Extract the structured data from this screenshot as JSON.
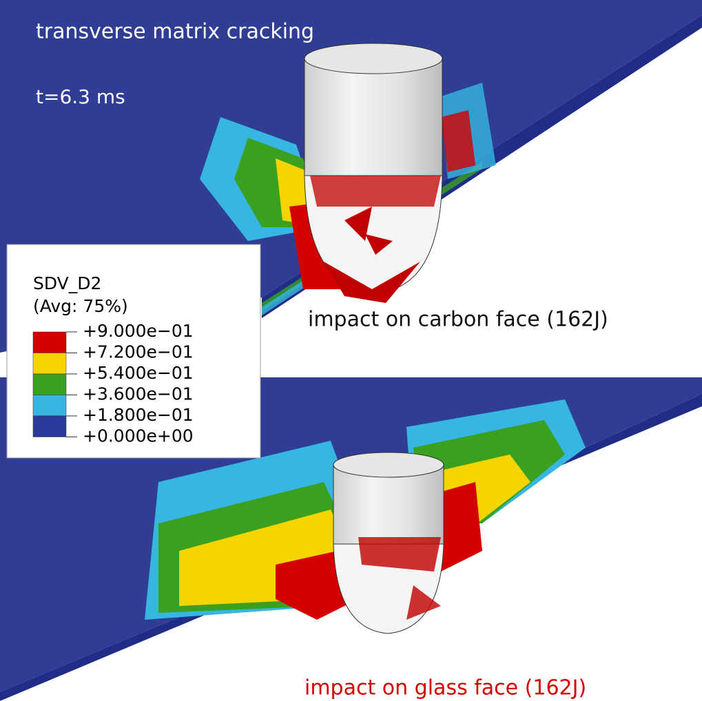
{
  "header": {
    "title": "transverse matrix cracking",
    "time": "t=6.3 ms"
  },
  "panels": [
    {
      "caption": "impact on carbon face (162J)",
      "caption_color": "#111111"
    },
    {
      "caption": "impact on glass face (162J)",
      "caption_color": "#d40000"
    }
  ],
  "legend": {
    "title": "SDV_D2",
    "subtitle": "(Avg: 75%)",
    "entries": [
      {
        "label": "+9.000e−01",
        "color": "#d40000"
      },
      {
        "label": "+7.200e−01",
        "color": "#f5d400"
      },
      {
        "label": "+5.400e−01",
        "color": "#3aa020"
      },
      {
        "label": "+3.600e−01",
        "color": "#36b6e0"
      },
      {
        "label": "+1.800e−01",
        "color": "#2a3a9a"
      },
      {
        "label": "+0.000e+00",
        "color": null
      }
    ]
  }
}
